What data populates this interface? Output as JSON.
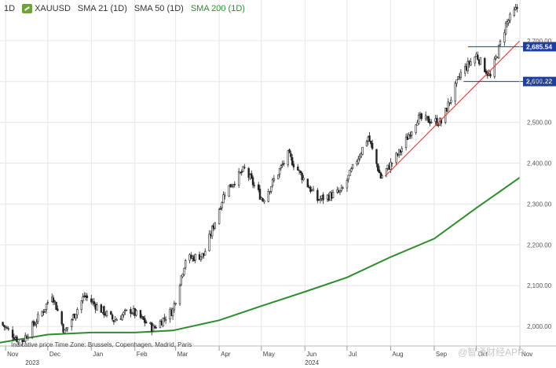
{
  "legend": {
    "timeframe": "1D",
    "symbol": "XAUUSD",
    "sma21": "SMA 21 (1D)",
    "sma50": "SMA 50 (1D)",
    "sma200": "SMA 200 (1D)"
  },
  "footnote": "Indicative price   Time Zone: Brussels, Copenhagen, Madrid, Paris",
  "watermark": "@智通财经APP",
  "colors": {
    "candle": "#222222",
    "sma200": "#2e8b2e",
    "trendline": "#e64545",
    "level_line": "#1d3f9e",
    "price_box": "#1d3f9e",
    "grid": "#e6e6e6"
  },
  "chart_data": {
    "type": "candlestick",
    "title": "",
    "xlabel": "",
    "ylabel": "",
    "ylim": [
      1950,
      2800
    ],
    "y_ticks": [
      "2,000.00",
      "2,100.00",
      "2,200.00",
      "2,300.00",
      "2,400.00",
      "2,500.00",
      "2,600.00",
      "2,700.00"
    ],
    "y_tick_values": [
      2000,
      2100,
      2200,
      2300,
      2400,
      2500,
      2600,
      2700
    ],
    "grid": true,
    "x_month_labels": [
      "Nov",
      "Dec",
      "Jan",
      "Feb",
      "Mar",
      "Apr",
      "May",
      "Jun",
      "Jul",
      "Aug",
      "Sep",
      "Oct",
      "Nov"
    ],
    "x_month_dates": [
      "2023-11-01",
      "2023-12-01",
      "2024-01-01",
      "2024-02-01",
      "2024-03-01",
      "2024-04-01",
      "2024-05-01",
      "2024-06-01",
      "2024-07-01",
      "2024-08-01",
      "2024-09-01",
      "2024-10-01",
      "2024-11-01"
    ],
    "x_year_labels": [
      "2023",
      "2024"
    ],
    "x_year_dates": [
      "2023-11-15",
      "2024-06-01"
    ],
    "x_range": [
      "2023-10-28",
      "2024-11-01"
    ],
    "price_path": [
      {
        "date": "2023-10-28",
        "price": 2010
      },
      {
        "date": "2023-11-12",
        "price": 1960
      },
      {
        "date": "2023-11-28",
        "price": 2040
      },
      {
        "date": "2023-12-04",
        "price": 2080
      },
      {
        "date": "2023-12-13",
        "price": 1985
      },
      {
        "date": "2023-12-27",
        "price": 2075
      },
      {
        "date": "2024-01-17",
        "price": 2015
      },
      {
        "date": "2024-01-29",
        "price": 2040
      },
      {
        "date": "2024-02-14",
        "price": 1995
      },
      {
        "date": "2024-02-28",
        "price": 2040
      },
      {
        "date": "2024-03-08",
        "price": 2165
      },
      {
        "date": "2024-03-21",
        "price": 2175
      },
      {
        "date": "2024-04-05",
        "price": 2330
      },
      {
        "date": "2024-04-19",
        "price": 2385
      },
      {
        "date": "2024-05-02",
        "price": 2310
      },
      {
        "date": "2024-05-20",
        "price": 2420
      },
      {
        "date": "2024-06-10",
        "price": 2310
      },
      {
        "date": "2024-06-27",
        "price": 2330
      },
      {
        "date": "2024-07-16",
        "price": 2465
      },
      {
        "date": "2024-07-25",
        "price": 2365
      },
      {
        "date": "2024-08-08",
        "price": 2430
      },
      {
        "date": "2024-08-20",
        "price": 2510
      },
      {
        "date": "2024-09-06",
        "price": 2500
      },
      {
        "date": "2024-09-20",
        "price": 2620
      },
      {
        "date": "2024-10-01",
        "price": 2665
      },
      {
        "date": "2024-10-11",
        "price": 2610
      },
      {
        "date": "2024-10-22",
        "price": 2740
      },
      {
        "date": "2024-10-30",
        "price": 2780
      }
    ],
    "series": [
      {
        "name": "SMA 200 (1D)",
        "points": [
          {
            "date": "2023-10-28",
            "value": 1960
          },
          {
            "date": "2023-12-01",
            "value": 1980
          },
          {
            "date": "2024-01-01",
            "value": 1985
          },
          {
            "date": "2024-02-01",
            "value": 1985
          },
          {
            "date": "2024-02-28",
            "value": 1990
          },
          {
            "date": "2024-04-01",
            "value": 2015
          },
          {
            "date": "2024-05-01",
            "value": 2050
          },
          {
            "date": "2024-06-01",
            "value": 2085
          },
          {
            "date": "2024-07-01",
            "value": 2120
          },
          {
            "date": "2024-08-01",
            "value": 2170
          },
          {
            "date": "2024-09-01",
            "value": 2215
          },
          {
            "date": "2024-10-01",
            "value": 2290
          },
          {
            "date": "2024-11-01",
            "value": 2365
          }
        ]
      }
    ],
    "trendline": {
      "from": {
        "date": "2024-07-28",
        "value": 2368
      },
      "to": {
        "date": "2024-11-01",
        "value": 2700
      }
    },
    "levels": [
      {
        "value": 2685.54,
        "label": "2,685.54",
        "from_date": "2024-09-25"
      },
      {
        "value": 2600.22,
        "label": "2,600.22",
        "from_date": "2024-09-22"
      }
    ]
  }
}
